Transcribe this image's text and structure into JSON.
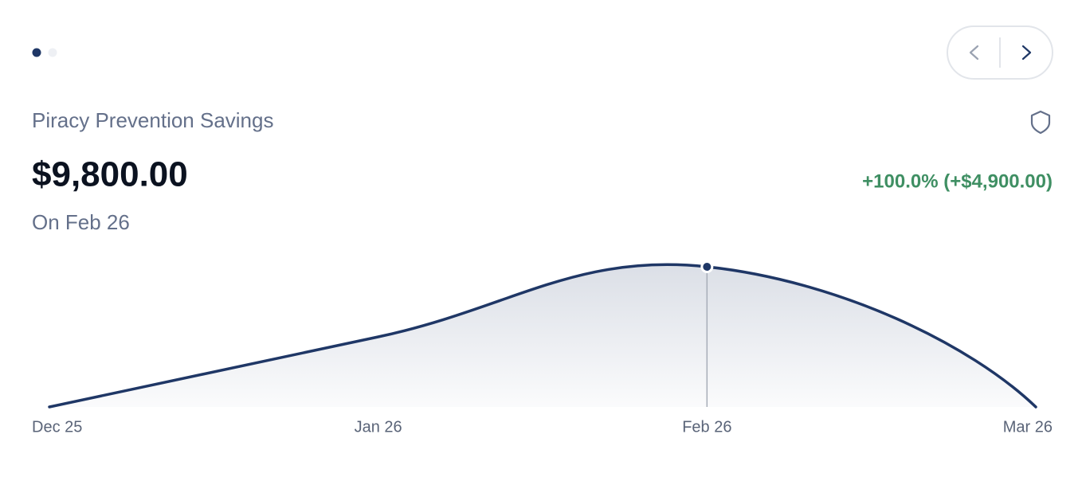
{
  "header": {
    "title": "Piracy Prevention Savings",
    "amount": "$9,800.00",
    "date": "On Feb 26",
    "change": "+100.0% (+$4,900.00)"
  },
  "chart_data": {
    "type": "area",
    "categories": [
      "Dec 25",
      "Jan 26",
      "Feb 26",
      "Mar 26"
    ],
    "values": [
      0,
      4900,
      9800,
      0
    ],
    "color": "#1f3766",
    "ylim": [
      0,
      9800
    ],
    "grid": false
  }
}
